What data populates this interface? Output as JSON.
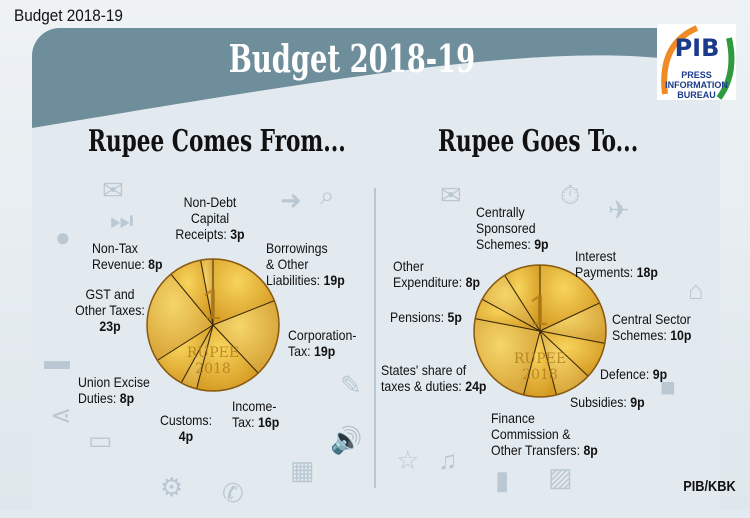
{
  "header": {
    "page_label": "Budget 2018-19",
    "title": "Budget 2018-19",
    "logo_text": "PIB",
    "logo_subtext": "PRESS INFORMATION BUREAU"
  },
  "credit": "PIB/KBK",
  "colors": {
    "banner": "#6e8e9b",
    "coin_light": "#f7d45c",
    "coin_dark": "#d59a22",
    "background": "#e3eaef"
  },
  "chart_data": [
    {
      "type": "pie",
      "title": "Rupee Comes From...",
      "unit": "p",
      "coin_text": [
        "1",
        "RUPEE",
        "2018"
      ],
      "slices": [
        {
          "label": "Borrowings & Other Liabilities",
          "value": 19
        },
        {
          "label": "Corporation-Tax",
          "value": 19
        },
        {
          "label": "Income-Tax",
          "value": 16
        },
        {
          "label": "Customs",
          "value": 4
        },
        {
          "label": "Union Excise Duties",
          "value": 8
        },
        {
          "label": "GST and Other Taxes",
          "value": 23
        },
        {
          "label": "Non-Tax Revenue",
          "value": 8
        },
        {
          "label": "Non-Debt Capital Receipts",
          "value": 3
        }
      ]
    },
    {
      "type": "pie",
      "title": "Rupee Goes To...",
      "unit": "p",
      "coin_text": [
        "1",
        "RUPEE",
        "2018"
      ],
      "slices": [
        {
          "label": "Interest Payments",
          "value": 18
        },
        {
          "label": "Central Sector Schemes",
          "value": 10
        },
        {
          "label": "Defence",
          "value": 9
        },
        {
          "label": "Subsidies",
          "value": 9
        },
        {
          "label": "Finance Commission & Other Transfers",
          "value": 8
        },
        {
          "label": "States' share of taxes & duties",
          "value": 24
        },
        {
          "label": "Pensions",
          "value": 5
        },
        {
          "label": "Other Expenditure",
          "value": 8
        },
        {
          "label": "Centrally Sponsored Schemes",
          "value": 9
        }
      ]
    }
  ],
  "labels": {
    "left": {
      "nondebt": [
        "Non-Debt",
        "Capital",
        "Receipts: ",
        "3p"
      ],
      "nontax": [
        "Non-Tax",
        "Revenue: ",
        "8p"
      ],
      "gst": [
        "GST and",
        "Other Taxes:",
        "23p"
      ],
      "excise": [
        "Union Excise",
        "Duties: ",
        "8p"
      ],
      "customs": [
        "Customs:",
        "4p"
      ],
      "income": [
        "Income-",
        "Tax: ",
        "16p"
      ],
      "corp": [
        "Corporation-",
        "Tax: ",
        "19p"
      ],
      "borrow": [
        "Borrowings",
        "& Other",
        "Liabilities: ",
        "19p"
      ]
    },
    "right": {
      "css": [
        "Centrally",
        "Sponsored",
        "Schemes: ",
        "9p"
      ],
      "other": [
        "Other",
        "Expenditure: ",
        "8p"
      ],
      "pensions": [
        "Pensions: ",
        "5p"
      ],
      "states": [
        "States' share of",
        "taxes & duties: ",
        "24p"
      ],
      "finance": [
        "Finance",
        "Commission &",
        "Other Transfers: ",
        "8p"
      ],
      "subsidies": [
        "Subsidies: ",
        "9p"
      ],
      "defence": [
        "Defence: ",
        "9p"
      ],
      "central": [
        "Central Sector",
        "Schemes: ",
        "10p"
      ],
      "interest": [
        "Interest",
        "Payments: ",
        "18p"
      ]
    }
  },
  "icons": [
    "mail-icon",
    "search-icon",
    "arrow-right-icon",
    "camera-icon",
    "wrench-icon",
    "pencil-icon",
    "bluetooth-icon",
    "volume-icon",
    "calendar-icon",
    "phone-icon",
    "gear-icon",
    "battery-icon",
    "share-icon",
    "folder-icon",
    "location-icon",
    "star-icon",
    "music-icon",
    "chart-icon",
    "image-icon",
    "clock-icon",
    "airplane-icon",
    "globe-icon",
    "home-icon",
    "video-icon",
    "document-icon",
    "user-icon"
  ]
}
